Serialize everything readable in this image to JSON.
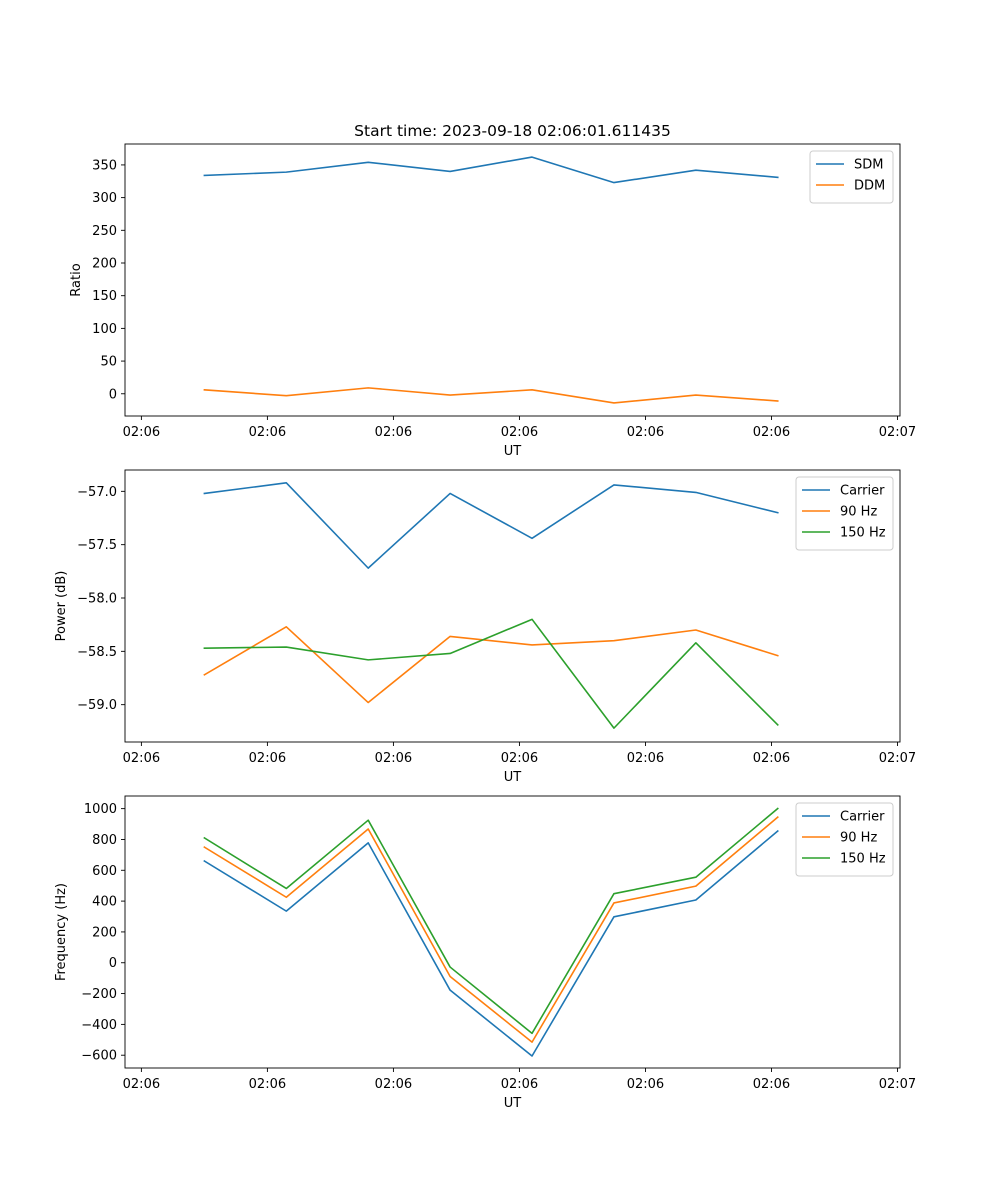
{
  "chart_data": [
    {
      "type": "line",
      "title": "Start time: 2023-09-18 02:06:01.611435",
      "xlabel": "UT",
      "ylabel": "Ratio",
      "x_ticks": [
        "02:06",
        "02:06",
        "02:06",
        "02:06",
        "02:06",
        "02:06",
        "02:07"
      ],
      "x_tick_positions": [
        0,
        1,
        2,
        3,
        4,
        5,
        6
      ],
      "x": [
        0.5,
        1.15,
        1.8,
        2.45,
        3.1,
        3.75,
        4.4,
        5.05
      ],
      "xlim": [
        -0.13,
        6.02
      ],
      "ylim": [
        -34,
        382
      ],
      "y_ticks": [
        0,
        50,
        100,
        150,
        200,
        250,
        300,
        350
      ],
      "legend_position": "top-right",
      "series": [
        {
          "name": "SDM",
          "color": "#1f77b4",
          "values": [
            334,
            339,
            354,
            340,
            362,
            323,
            342,
            331
          ]
        },
        {
          "name": "DDM",
          "color": "#ff7f0e",
          "values": [
            6,
            -3,
            9,
            -2,
            6,
            -14,
            -2,
            -11
          ]
        }
      ]
    },
    {
      "type": "line",
      "title": "",
      "xlabel": "UT",
      "ylabel": "Power (dB)",
      "x_ticks": [
        "02:06",
        "02:06",
        "02:06",
        "02:06",
        "02:06",
        "02:06",
        "02:07"
      ],
      "x_tick_positions": [
        0,
        1,
        2,
        3,
        4,
        5,
        6
      ],
      "x": [
        0.5,
        1.15,
        1.8,
        2.45,
        3.1,
        3.75,
        4.4,
        5.05
      ],
      "xlim": [
        -0.13,
        6.02
      ],
      "ylim": [
        -59.35,
        -56.8
      ],
      "y_ticks": [
        -59.0,
        -58.5,
        -58.0,
        -57.5,
        -57.0
      ],
      "y_tick_labels": [
        "−59.0",
        "−58.5",
        "−58.0",
        "−57.5",
        "−57.0"
      ],
      "legend_position": "top-right",
      "series": [
        {
          "name": "Carrier",
          "color": "#1f77b4",
          "values": [
            -57.02,
            -56.92,
            -57.72,
            -57.02,
            -57.44,
            -56.94,
            -57.01,
            -57.2
          ]
        },
        {
          "name": "90 Hz",
          "color": "#ff7f0e",
          "values": [
            -58.72,
            -58.27,
            -58.98,
            -58.36,
            -58.44,
            -58.4,
            -58.3,
            -58.54
          ]
        },
        {
          "name": "150 Hz",
          "color": "#2ca02c",
          "values": [
            -58.47,
            -58.46,
            -58.58,
            -58.52,
            -58.2,
            -59.22,
            -58.42,
            -59.19
          ]
        }
      ]
    },
    {
      "type": "line",
      "title": "",
      "xlabel": "UT",
      "ylabel": "Frequency (Hz)",
      "x_ticks": [
        "02:06",
        "02:06",
        "02:06",
        "02:06",
        "02:06",
        "02:06",
        "02:07"
      ],
      "x_tick_positions": [
        0,
        1,
        2,
        3,
        4,
        5,
        6
      ],
      "x": [
        0.5,
        1.15,
        1.8,
        2.45,
        3.1,
        3.75,
        4.4,
        5.05
      ],
      "xlim": [
        -0.13,
        6.02
      ],
      "ylim": [
        -683,
        1082
      ],
      "y_ticks": [
        -600,
        -400,
        -200,
        0,
        200,
        400,
        600,
        800,
        1000
      ],
      "y_tick_labels": [
        "−600",
        "−400",
        "−200",
        "0",
        "200",
        "400",
        "600",
        "800",
        "1000"
      ],
      "legend_position": "top-right",
      "series": [
        {
          "name": "Carrier",
          "color": "#1f77b4",
          "values": [
            660,
            335,
            778,
            -178,
            -605,
            298,
            407,
            855
          ]
        },
        {
          "name": "90 Hz",
          "color": "#ff7f0e",
          "values": [
            750,
            425,
            868,
            -89,
            -515,
            388,
            497,
            945
          ]
        },
        {
          "name": "150 Hz",
          "color": "#2ca02c",
          "values": [
            810,
            482,
            925,
            -28,
            -458,
            448,
            555,
            1001
          ]
        }
      ]
    }
  ]
}
